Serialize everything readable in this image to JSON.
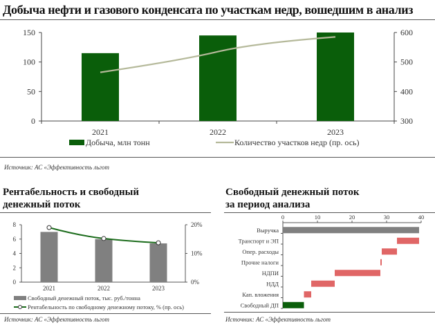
{
  "main_chart": {
    "title": "Добыча нефти и газового конденсата по участкам недр, вошедшим в анализ",
    "source": "Источник: АС «Эффективность льгот"
  },
  "left_panel": {
    "title_line1": "Рентабельность и свободный",
    "title_line2": "денежный поток",
    "source": "Источник: АС «Эффективность льгот"
  },
  "right_panel": {
    "title_line1": "Свободный денежный поток",
    "title_line2": "за период анализа",
    "source": "Источник: АС «Эффективность льгот"
  },
  "colors": {
    "dark_green": "#0a5e0a",
    "line_beige": "#b5b99a",
    "gray": "#808080",
    "red": "#e06666",
    "green_line": "#1a6b1a"
  },
  "chart_data": [
    {
      "type": "bar",
      "categories": [
        "2021",
        "2022",
        "2023"
      ],
      "series": [
        {
          "name": "Добыча, млн тонн",
          "type": "bar",
          "axis": "left",
          "values": [
            115,
            145,
            150
          ]
        },
        {
          "name": "Количество участков недр (пр. ось)",
          "type": "line",
          "axis": "right",
          "values": [
            465,
            535,
            585
          ]
        }
      ],
      "ylim": [
        0,
        150
      ],
      "yticks": [
        "0",
        "50",
        "100",
        "150"
      ],
      "y2lim": [
        300,
        600
      ],
      "y2ticks": [
        "300",
        "400",
        "500",
        "600"
      ],
      "legend": "bottom"
    },
    {
      "type": "bar",
      "categories": [
        "2021",
        "2022",
        "2023"
      ],
      "series": [
        {
          "name": "Свободный денежный поток, тыс. руб./тонна",
          "type": "bar",
          "axis": "left",
          "values": [
            7.0,
            6.0,
            5.4
          ]
        },
        {
          "name": "Рентабельность по свободному денежному потоку, % (пр. ось)",
          "type": "line",
          "axis": "right",
          "values": [
            19,
            15.2,
            13.7
          ]
        }
      ],
      "ylim": [
        0,
        8
      ],
      "yticks": [
        "0",
        "2",
        "4",
        "6",
        "8"
      ],
      "y2lim": [
        0,
        20
      ],
      "y2ticks": [
        "0%",
        "10%",
        "20%"
      ],
      "legend": "bottom"
    },
    {
      "type": "bar",
      "orientation": "horizontal-waterfall",
      "categories": [
        "Выручка",
        "Транспорт и ЭП",
        "Опер. расходы",
        "Прочие налоги",
        "НДПИ",
        "НДД",
        "Кап. вложения",
        "Свободный ДП"
      ],
      "ranges": [
        [
          0,
          39.4
        ],
        [
          33,
          39.4
        ],
        [
          28.6,
          33
        ],
        [
          28.2,
          28.6
        ],
        [
          15,
          28.2
        ],
        [
          8.2,
          15
        ],
        [
          6.1,
          8.2
        ],
        [
          0,
          6.1
        ]
      ],
      "kinds": [
        "total",
        "decrease",
        "decrease",
        "decrease",
        "decrease",
        "decrease",
        "decrease",
        "result"
      ],
      "xlim": [
        0,
        40
      ],
      "xticks": [
        "0",
        "10",
        "20",
        "30",
        "40"
      ]
    }
  ]
}
